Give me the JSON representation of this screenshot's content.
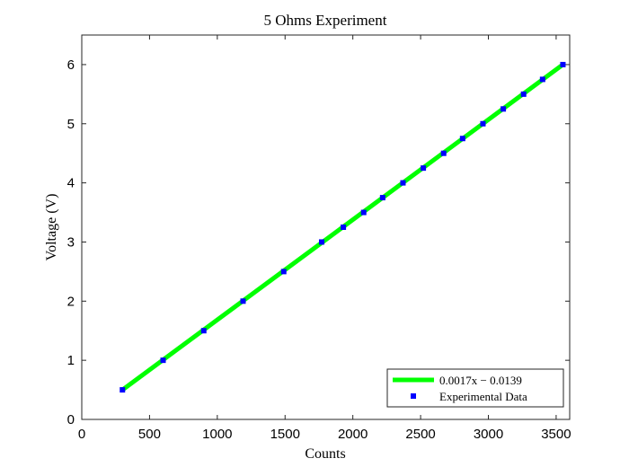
{
  "chart_data": {
    "type": "scatter",
    "title": "5 Ohms Experiment",
    "xlabel": "Counts",
    "ylabel": "Voltage (V)",
    "xlim": [
      0,
      3600
    ],
    "ylim": [
      0,
      6.5
    ],
    "xticks": [
      0,
      500,
      1000,
      1500,
      2000,
      2500,
      3000,
      3500
    ],
    "yticks": [
      0,
      1,
      2,
      3,
      4,
      5,
      6
    ],
    "grid": false,
    "legend_position": "bottom-right",
    "series": [
      {
        "name": "0.0017x − 0.0139",
        "kind": "line",
        "color": "#00ff00",
        "x": [
          300,
          3550
        ],
        "y": [
          0.5,
          6.0
        ]
      },
      {
        "name": "Experimental Data",
        "kind": "scatter",
        "color": "#0000ff",
        "x": [
          300,
          600,
          900,
          1190,
          1490,
          1770,
          1930,
          2080,
          2220,
          2370,
          2520,
          2670,
          2810,
          2960,
          3110,
          3260,
          3400,
          3550
        ],
        "y": [
          0.5,
          1.0,
          1.5,
          2.0,
          2.5,
          3.0,
          3.25,
          3.5,
          3.75,
          4.0,
          4.25,
          4.5,
          4.75,
          5.0,
          5.25,
          5.5,
          5.75,
          6.0
        ]
      }
    ]
  }
}
